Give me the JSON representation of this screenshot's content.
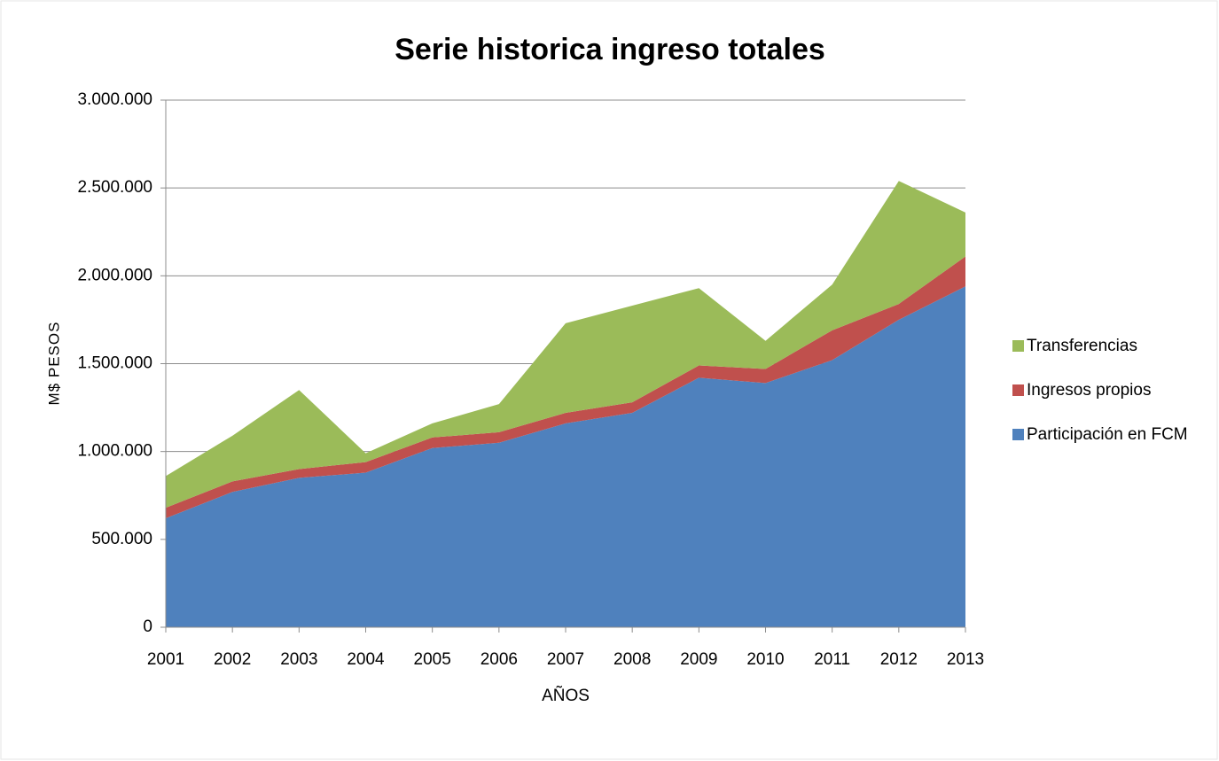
{
  "chart_data": {
    "type": "stacked_area",
    "title": "Serie historica ingreso totales",
    "x_label": "AÑOS",
    "y_label": "M$ PESOS",
    "categories": [
      "2001",
      "2002",
      "2003",
      "2004",
      "2005",
      "2006",
      "2007",
      "2008",
      "2009",
      "2010",
      "2011",
      "2012",
      "2013"
    ],
    "series": [
      {
        "name": "Participación en FCM",
        "color": "#4f81bd",
        "values": [
          620000,
          770000,
          850000,
          880000,
          1020000,
          1050000,
          1160000,
          1220000,
          1420000,
          1390000,
          1520000,
          1750000,
          1940000
        ]
      },
      {
        "name": "Ingresos propios",
        "color": "#c0504d",
        "values": [
          60000,
          60000,
          50000,
          60000,
          60000,
          60000,
          60000,
          60000,
          70000,
          80000,
          170000,
          90000,
          170000
        ]
      },
      {
        "name": "Transferencias",
        "color": "#9bbb59",
        "values": [
          180000,
          260000,
          450000,
          50000,
          80000,
          160000,
          510000,
          550000,
          440000,
          160000,
          260000,
          700000,
          250000
        ]
      }
    ],
    "ylim": [
      0,
      3000000
    ],
    "yticks": [
      0,
      {
        "value": 500000,
        "label": "500.000"
      },
      {
        "value": 1000000,
        "label": "1.000.000"
      },
      {
        "value": 1500000,
        "label": "1.500.000"
      },
      {
        "value": 2000000,
        "label": "2.000.000"
      },
      {
        "value": 2500000,
        "label": "2.500.000"
      },
      {
        "value": 3000000,
        "label": "3.000.000"
      }
    ],
    "grid": true,
    "legend": "right"
  }
}
